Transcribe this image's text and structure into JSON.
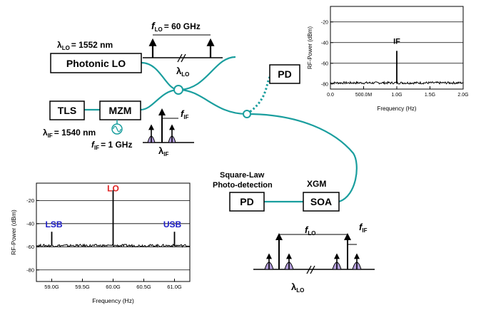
{
  "colors": {
    "fiber": "#1a9e9e",
    "sideband_fill": "#b49fdc",
    "lo_text": "#e02020",
    "sb_text": "#2020c8"
  },
  "blocks": {
    "photonic_lo": "Photonic LO",
    "tls": "TLS",
    "mzm": "MZM",
    "pd_top": "PD",
    "pd_bottom": "PD",
    "soa": "SOA"
  },
  "labels": {
    "lambda_lo_main": "λ",
    "lambda_lo_value": "= 1552 nm",
    "lo_sub": "LO",
    "lambda_if_main": "λ",
    "lambda_if_value": "= 1540 nm",
    "if_sub": "IF",
    "f_main": "f",
    "f_lo_value": "= 60 GHz",
    "f_if_value": "= 1 GHz",
    "square_law_1": "Square-Law",
    "square_law_2": "Photo-detection",
    "xgm": "XGM"
  },
  "chart_data": [
    {
      "type": "line",
      "ylabel": "RF-Power (dBm)",
      "xlabel": "Frequency (Hz)",
      "xlim": [
        0,
        2000000000
      ],
      "ylim": [
        -85,
        -5
      ],
      "xticks": [
        "0.0",
        "500.0M",
        "1.0G",
        "1.5G",
        "2.0G"
      ],
      "yticks": [
        "-20",
        "-40",
        "-60",
        "-80"
      ],
      "noise_floor": -79,
      "peaks": [
        {
          "x": 1000000000,
          "y": -48,
          "label": "IF"
        }
      ]
    },
    {
      "type": "line",
      "ylabel": "RF-Power (dBm)",
      "xlabel": "Frequency (Hz)",
      "xlim": [
        58750000000,
        61250000000
      ],
      "ylim": [
        -90,
        -5
      ],
      "xticks": [
        "59.0G",
        "59.5G",
        "60.0G",
        "60.5G",
        "61.0G"
      ],
      "yticks": [
        "-20",
        "-40",
        "-60",
        "-80"
      ],
      "noise_floor": -59,
      "peaks": [
        {
          "x": 59000000000,
          "y": -47,
          "label": "LSB"
        },
        {
          "x": 60000000000,
          "y": -11,
          "label": "LO"
        },
        {
          "x": 61000000000,
          "y": -47,
          "label": "USB"
        }
      ]
    }
  ]
}
